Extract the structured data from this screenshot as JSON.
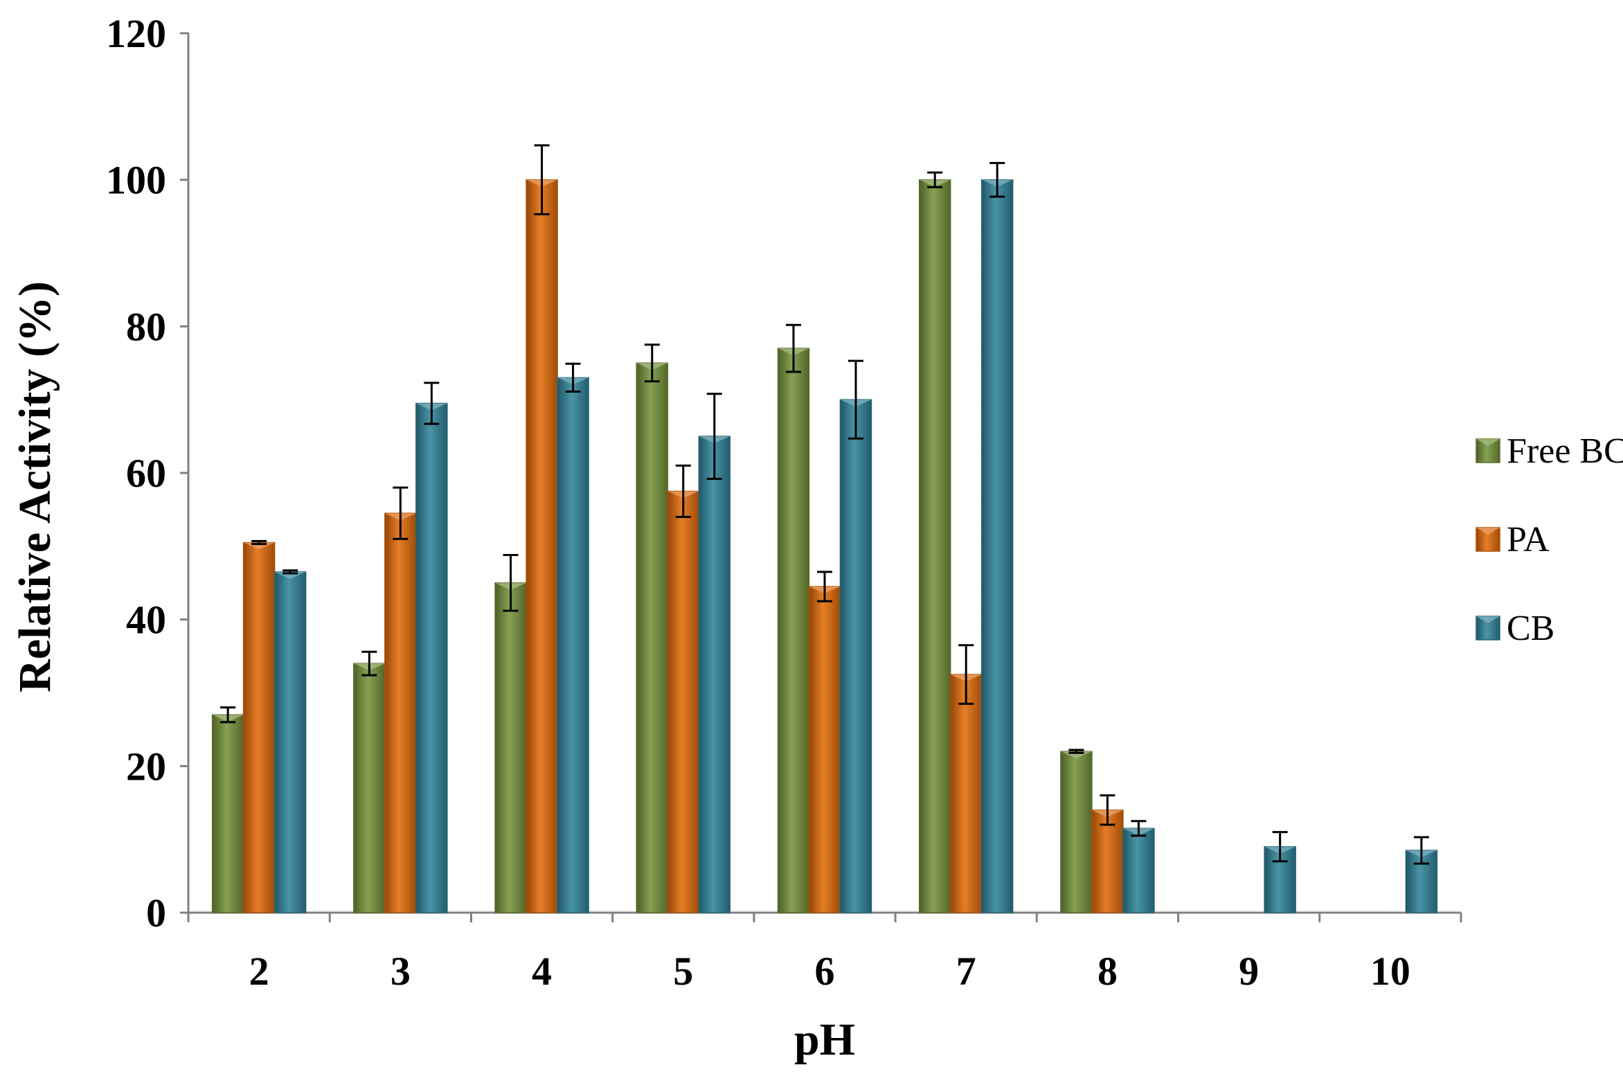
{
  "chart_data": {
    "type": "bar",
    "xlabel": "pH",
    "ylabel": "Relative Activity (%)",
    "ylim": [
      0,
      120
    ],
    "yticks": [
      0,
      20,
      40,
      60,
      80,
      100,
      120
    ],
    "categories": [
      "2",
      "3",
      "4",
      "5",
      "6",
      "7",
      "8",
      "9",
      "10"
    ],
    "grid": false,
    "legend_position": "right",
    "series": [
      {
        "name": "Free BCL",
        "color": "#77933c",
        "values": [
          27,
          34,
          45,
          75,
          77,
          100,
          22,
          0,
          0
        ],
        "errors": [
          1,
          1.6,
          3.8,
          2.5,
          3.2,
          1,
          0.2,
          0,
          0
        ]
      },
      {
        "name": "PA",
        "color": "#e46c0a",
        "values": [
          50.5,
          54.5,
          100,
          57.5,
          44.5,
          32.5,
          14,
          0,
          0
        ],
        "errors": [
          0.2,
          3.5,
          4.7,
          3.5,
          2,
          4,
          2,
          0,
          0
        ]
      },
      {
        "name": "CB",
        "color": "#31859c",
        "values": [
          46.5,
          69.5,
          73,
          65,
          70,
          100,
          11.5,
          9,
          8.5
        ],
        "errors": [
          0.2,
          2.8,
          1.9,
          5.8,
          5.3,
          2.3,
          1,
          2,
          1.8
        ]
      }
    ]
  }
}
